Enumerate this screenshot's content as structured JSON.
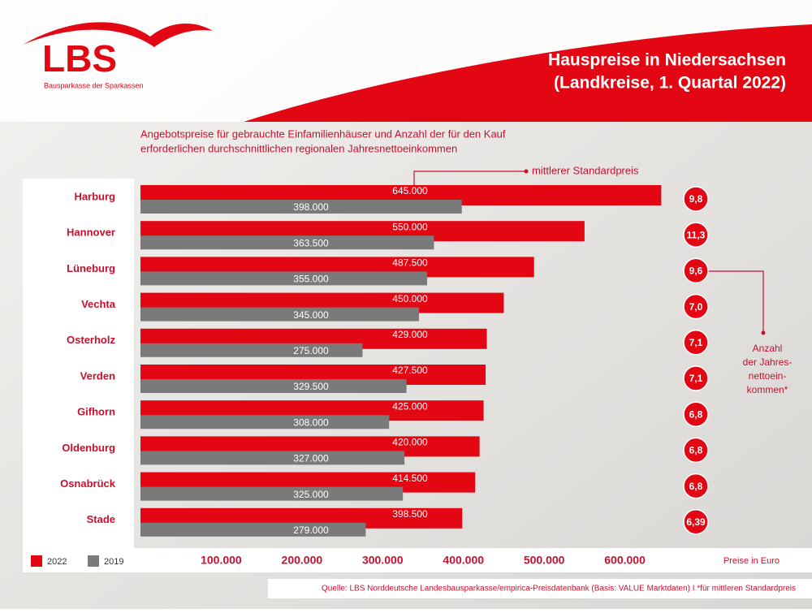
{
  "chart_data": {
    "type": "bar",
    "orientation": "horizontal",
    "logo": {
      "text": "LBS",
      "tagline": "Bausparkasse der Sparkassen"
    },
    "title": [
      "Hauspreise in Niedersachsen",
      "(Landkreise, 1. Quartal 2022)"
    ],
    "subtitle": [
      "Angebotspreise für gebrauchte Einfamilienhäuser  und Anzahl der für den Kauf",
      "erforderlichen durchschnittlichen regionalen Jahresnettoeinkommen"
    ],
    "categories": [
      "Harburg",
      "Hannover",
      "Lüneburg",
      "Vechta",
      "Osterholz",
      "Verden",
      "Gifhorn",
      "Oldenburg",
      "Osnabrück",
      "Stade"
    ],
    "series": [
      {
        "name": "2022",
        "color": "#e30613",
        "values": [
          645000,
          550000,
          487500,
          450000,
          429000,
          427500,
          425000,
          420000,
          414500,
          398500
        ],
        "value_labels": [
          "645.000",
          "550.000",
          "487.500",
          "450.000",
          "429.000",
          "427.500",
          "425.000",
          "420.000",
          "414.500",
          "398.500"
        ]
      },
      {
        "name": "2019",
        "color": "#7a7a7a",
        "values": [
          398000,
          363500,
          355000,
          345000,
          275000,
          329500,
          308000,
          327000,
          325000,
          279000
        ],
        "value_labels": [
          "398.000",
          "363.500",
          "355.000",
          "345.000",
          "275.000",
          "329.500",
          "308.000",
          "327.000",
          "325.000",
          "279.000"
        ]
      }
    ],
    "ratios": {
      "color": "#e30613",
      "values": [
        9.8,
        11.3,
        9.6,
        7.0,
        7.1,
        7.1,
        6.8,
        6.8,
        6.8,
        6.39
      ],
      "value_labels": [
        "9,8",
        "11,3",
        "9,6",
        "7,0",
        "7,1",
        "7,1",
        "6,8",
        "6,8",
        "6,8",
        "6,39"
      ]
    },
    "xlim": [
      0,
      700000
    ],
    "xticks": [
      {
        "value": 100000,
        "label": "100.000"
      },
      {
        "value": 200000,
        "label": "200.000"
      },
      {
        "value": 300000,
        "label": "300.000"
      },
      {
        "value": 400000,
        "label": "400.000"
      },
      {
        "value": 500000,
        "label": "500.000"
      },
      {
        "value": 600000,
        "label": "600.000"
      }
    ],
    "x_label": "Preise in Euro",
    "annotations": {
      "price": "mittlerer Standardpreis",
      "ratio": [
        "Anzahl",
        "der Jahres-",
        "nettoein-",
        "kommen*"
      ]
    },
    "source": "Quelle: LBS Norddeutsche Landesbausparkasse/empirica-Preisdatenbank (Basis: VALUE Marktdaten)   I   *für mittleren Standardpreis"
  }
}
